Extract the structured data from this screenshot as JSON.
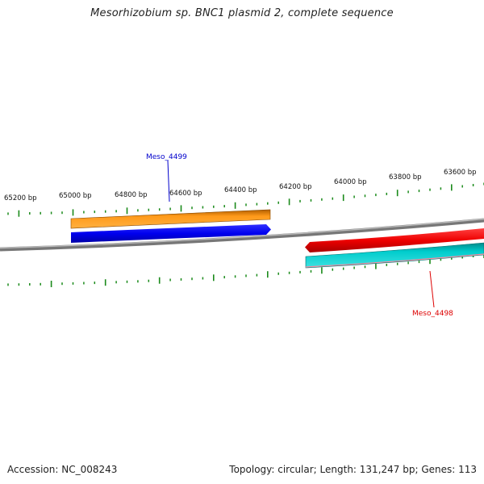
{
  "title": "Mesorhizobium sp. BNC1 plasmid 2, complete sequence",
  "footer": {
    "accession": "Accession: NC_008243",
    "summary": "Topology: circular; Length: 131,247 bp; Genes: 113"
  },
  "ruler": {
    "labels": [
      "65200 bp",
      "65000 bp",
      "64800 bp",
      "64600 bp",
      "64400 bp",
      "64200 bp",
      "64000 bp",
      "63800 bp",
      "63600 bp"
    ]
  },
  "genes": [
    {
      "name": "Meso_4499",
      "color": "#0000cc",
      "feature_color": "#0000ee"
    },
    {
      "name": "Meso_4498",
      "color": "#dd0000",
      "feature_color": "#ee0000"
    }
  ],
  "colors": {
    "backbone": "#888888",
    "tick": "#1a8a1a",
    "orange_feature": "#ff8c00",
    "cyan_feature": "#00c8c8"
  }
}
